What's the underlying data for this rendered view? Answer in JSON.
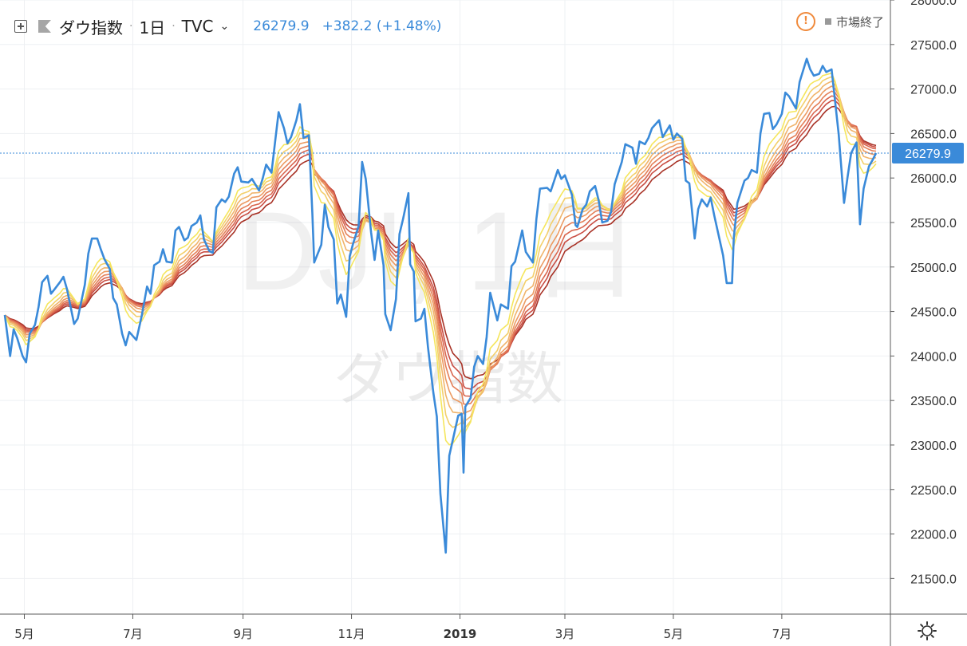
{
  "header": {
    "symbol": "ダウ指数",
    "interval": "1日",
    "exchange": "TVC",
    "last_value": "26279.9",
    "change": "+382.2 (+1.48%)",
    "market_status": "市場終了"
  },
  "watermark": {
    "line1": "DJI, 1日",
    "line2": "ダウ指数"
  },
  "colors": {
    "price": "#3a8ad9",
    "ribbon": [
      "#f5e65c",
      "#f3cf6a",
      "#f0b46b",
      "#ec9a62",
      "#e47f58",
      "#d9664f",
      "#c94e44",
      "#a83226"
    ],
    "last_label_bg": "#3a8ad9"
  },
  "chart_data": {
    "type": "line",
    "x_range": [
      "2018-04-20",
      "2019-08-23"
    ],
    "ylim": [
      21100,
      28000
    ],
    "y_ticks": [
      "21500.0",
      "22000.0",
      "22500.0",
      "23000.0",
      "23500.0",
      "24000.0",
      "24500.0",
      "25000.0",
      "25500.0",
      "26000.0",
      "26500.0",
      "27000.0",
      "27500.0",
      "28000.0"
    ],
    "x_ticks": [
      {
        "date": "2018-05-01",
        "label": "5月"
      },
      {
        "date": "2018-07-01",
        "label": "7月"
      },
      {
        "date": "2018-09-01",
        "label": "9月"
      },
      {
        "date": "2018-11-01",
        "label": "11月"
      },
      {
        "date": "2019-01-01",
        "label": "2019"
      },
      {
        "date": "2019-03-01",
        "label": "3月"
      },
      {
        "date": "2019-05-01",
        "label": "5月"
      },
      {
        "date": "2019-07-01",
        "label": "7月"
      }
    ],
    "last_value_label": "26279.9",
    "series": [
      {
        "values": [
          [
            "2018-04-20",
            24460
          ],
          [
            "2018-04-23",
            24000
          ],
          [
            "2018-04-25",
            24300
          ],
          [
            "2018-04-27",
            24200
          ],
          [
            "2018-04-30",
            24000
          ],
          [
            "2018-05-02",
            23930
          ],
          [
            "2018-05-04",
            24250
          ],
          [
            "2018-05-07",
            24350
          ],
          [
            "2018-05-09",
            24550
          ],
          [
            "2018-05-11",
            24830
          ],
          [
            "2018-05-14",
            24900
          ],
          [
            "2018-05-16",
            24700
          ],
          [
            "2018-05-18",
            24750
          ],
          [
            "2018-05-21",
            24830
          ],
          [
            "2018-05-23",
            24890
          ],
          [
            "2018-05-25",
            24750
          ],
          [
            "2018-05-29",
            24360
          ],
          [
            "2018-05-31",
            24420
          ],
          [
            "2018-06-04",
            24800
          ],
          [
            "2018-06-06",
            25150
          ],
          [
            "2018-06-08",
            25320
          ],
          [
            "2018-06-11",
            25320
          ],
          [
            "2018-06-13",
            25200
          ],
          [
            "2018-06-15",
            25090
          ],
          [
            "2018-06-18",
            24980
          ],
          [
            "2018-06-20",
            24650
          ],
          [
            "2018-06-22",
            24580
          ],
          [
            "2018-06-25",
            24250
          ],
          [
            "2018-06-27",
            24120
          ],
          [
            "2018-06-29",
            24270
          ],
          [
            "2018-07-03",
            24180
          ],
          [
            "2018-07-06",
            24450
          ],
          [
            "2018-07-09",
            24780
          ],
          [
            "2018-07-11",
            24700
          ],
          [
            "2018-07-13",
            25020
          ],
          [
            "2018-07-16",
            25060
          ],
          [
            "2018-07-18",
            25200
          ],
          [
            "2018-07-20",
            25060
          ],
          [
            "2018-07-23",
            25050
          ],
          [
            "2018-07-25",
            25410
          ],
          [
            "2018-07-27",
            25450
          ],
          [
            "2018-07-30",
            25300
          ],
          [
            "2018-08-01",
            25330
          ],
          [
            "2018-08-03",
            25460
          ],
          [
            "2018-08-06",
            25500
          ],
          [
            "2018-08-08",
            25580
          ],
          [
            "2018-08-10",
            25310
          ],
          [
            "2018-08-13",
            25180
          ],
          [
            "2018-08-15",
            25160
          ],
          [
            "2018-08-17",
            25670
          ],
          [
            "2018-08-20",
            25760
          ],
          [
            "2018-08-22",
            25730
          ],
          [
            "2018-08-24",
            25790
          ],
          [
            "2018-08-27",
            26050
          ],
          [
            "2018-08-29",
            26120
          ],
          [
            "2018-08-31",
            25960
          ],
          [
            "2018-09-04",
            25950
          ],
          [
            "2018-09-06",
            25990
          ],
          [
            "2018-09-10",
            25860
          ],
          [
            "2018-09-12",
            25990
          ],
          [
            "2018-09-14",
            26150
          ],
          [
            "2018-09-17",
            26060
          ],
          [
            "2018-09-19",
            26400
          ],
          [
            "2018-09-21",
            26740
          ],
          [
            "2018-09-24",
            26560
          ],
          [
            "2018-09-26",
            26390
          ],
          [
            "2018-09-28",
            26460
          ],
          [
            "2018-10-01",
            26650
          ],
          [
            "2018-10-03",
            26830
          ],
          [
            "2018-10-05",
            26450
          ],
          [
            "2018-10-08",
            26480
          ],
          [
            "2018-10-10",
            25600
          ],
          [
            "2018-10-11",
            25050
          ],
          [
            "2018-10-15",
            25250
          ],
          [
            "2018-10-17",
            25700
          ],
          [
            "2018-10-19",
            25450
          ],
          [
            "2018-10-22",
            25310
          ],
          [
            "2018-10-24",
            24590
          ],
          [
            "2018-10-26",
            24690
          ],
          [
            "2018-10-29",
            24440
          ],
          [
            "2018-10-31",
            25120
          ],
          [
            "2018-11-02",
            25270
          ],
          [
            "2018-11-05",
            25460
          ],
          [
            "2018-11-07",
            26180
          ],
          [
            "2018-11-09",
            25990
          ],
          [
            "2018-11-12",
            25390
          ],
          [
            "2018-11-14",
            25080
          ],
          [
            "2018-11-16",
            25410
          ],
          [
            "2018-11-19",
            25020
          ],
          [
            "2018-11-20",
            24470
          ],
          [
            "2018-11-23",
            24290
          ],
          [
            "2018-11-26",
            24640
          ],
          [
            "2018-11-28",
            25370
          ],
          [
            "2018-11-30",
            25540
          ],
          [
            "2018-12-03",
            25830
          ],
          [
            "2018-12-04",
            25030
          ],
          [
            "2018-12-06",
            24950
          ],
          [
            "2018-12-07",
            24390
          ],
          [
            "2018-12-10",
            24420
          ],
          [
            "2018-12-12",
            24530
          ],
          [
            "2018-12-14",
            24100
          ],
          [
            "2018-12-17",
            23590
          ],
          [
            "2018-12-19",
            23320
          ],
          [
            "2018-12-21",
            22450
          ],
          [
            "2018-12-24",
            21790
          ],
          [
            "2018-12-26",
            22880
          ],
          [
            "2018-12-28",
            23060
          ],
          [
            "2018-12-31",
            23330
          ],
          [
            "2019-01-02",
            23350
          ],
          [
            "2019-01-03",
            22690
          ],
          [
            "2019-01-04",
            23430
          ],
          [
            "2019-01-07",
            23530
          ],
          [
            "2019-01-09",
            23880
          ],
          [
            "2019-01-11",
            24000
          ],
          [
            "2019-01-14",
            23910
          ],
          [
            "2019-01-16",
            24210
          ],
          [
            "2019-01-18",
            24710
          ],
          [
            "2019-01-22",
            24400
          ],
          [
            "2019-01-24",
            24580
          ],
          [
            "2019-01-28",
            24530
          ],
          [
            "2019-01-30",
            25010
          ],
          [
            "2019-02-01",
            25060
          ],
          [
            "2019-02-05",
            25410
          ],
          [
            "2019-02-07",
            25170
          ],
          [
            "2019-02-11",
            25050
          ],
          [
            "2019-02-13",
            25540
          ],
          [
            "2019-02-15",
            25880
          ],
          [
            "2019-02-19",
            25890
          ],
          [
            "2019-02-21",
            25850
          ],
          [
            "2019-02-25",
            26090
          ],
          [
            "2019-02-27",
            25990
          ],
          [
            "2019-03-01",
            26030
          ],
          [
            "2019-03-05",
            25810
          ],
          [
            "2019-03-07",
            25470
          ],
          [
            "2019-03-08",
            25450
          ],
          [
            "2019-03-11",
            25650
          ],
          [
            "2019-03-13",
            25700
          ],
          [
            "2019-03-15",
            25850
          ],
          [
            "2019-03-18",
            25910
          ],
          [
            "2019-03-20",
            25750
          ],
          [
            "2019-03-22",
            25500
          ],
          [
            "2019-03-25",
            25520
          ],
          [
            "2019-03-27",
            25620
          ],
          [
            "2019-03-29",
            25930
          ],
          [
            "2019-04-02",
            26180
          ],
          [
            "2019-04-04",
            26380
          ],
          [
            "2019-04-08",
            26340
          ],
          [
            "2019-04-10",
            26160
          ],
          [
            "2019-04-12",
            26410
          ],
          [
            "2019-04-15",
            26380
          ],
          [
            "2019-04-17",
            26450
          ],
          [
            "2019-04-19",
            26560
          ],
          [
            "2019-04-23",
            26650
          ],
          [
            "2019-04-25",
            26460
          ],
          [
            "2019-04-29",
            26590
          ],
          [
            "2019-05-01",
            26430
          ],
          [
            "2019-05-03",
            26500
          ],
          [
            "2019-05-06",
            26440
          ],
          [
            "2019-05-08",
            25970
          ],
          [
            "2019-05-10",
            25940
          ],
          [
            "2019-05-13",
            25320
          ],
          [
            "2019-05-15",
            25650
          ],
          [
            "2019-05-17",
            25760
          ],
          [
            "2019-05-20",
            25680
          ],
          [
            "2019-05-22",
            25780
          ],
          [
            "2019-05-24",
            25580
          ],
          [
            "2019-05-29",
            25130
          ],
          [
            "2019-05-31",
            24820
          ],
          [
            "2019-06-03",
            24820
          ],
          [
            "2019-06-04",
            25330
          ],
          [
            "2019-06-06",
            25720
          ],
          [
            "2019-06-10",
            25970
          ],
          [
            "2019-06-12",
            26000
          ],
          [
            "2019-06-14",
            26090
          ],
          [
            "2019-06-17",
            26060
          ],
          [
            "2019-06-19",
            26500
          ],
          [
            "2019-06-21",
            26720
          ],
          [
            "2019-06-24",
            26730
          ],
          [
            "2019-06-26",
            26550
          ],
          [
            "2019-06-28",
            26600
          ],
          [
            "2019-07-01",
            26720
          ],
          [
            "2019-07-03",
            26960
          ],
          [
            "2019-07-05",
            26920
          ],
          [
            "2019-07-09",
            26780
          ],
          [
            "2019-07-11",
            27080
          ],
          [
            "2019-07-15",
            27340
          ],
          [
            "2019-07-17",
            27220
          ],
          [
            "2019-07-19",
            27150
          ],
          [
            "2019-07-22",
            27170
          ],
          [
            "2019-07-24",
            27260
          ],
          [
            "2019-07-26",
            27190
          ],
          [
            "2019-07-29",
            27220
          ],
          [
            "2019-07-31",
            26860
          ],
          [
            "2019-08-02",
            26490
          ],
          [
            "2019-08-05",
            25720
          ],
          [
            "2019-08-07",
            26010
          ],
          [
            "2019-08-09",
            26280
          ],
          [
            "2019-08-12",
            26400
          ],
          [
            "2019-08-14",
            25480
          ],
          [
            "2019-08-16",
            25880
          ],
          [
            "2019-08-19",
            26130
          ],
          [
            "2019-08-21",
            26200
          ],
          [
            "2019-08-23",
            26279.9
          ]
        ]
      }
    ]
  }
}
